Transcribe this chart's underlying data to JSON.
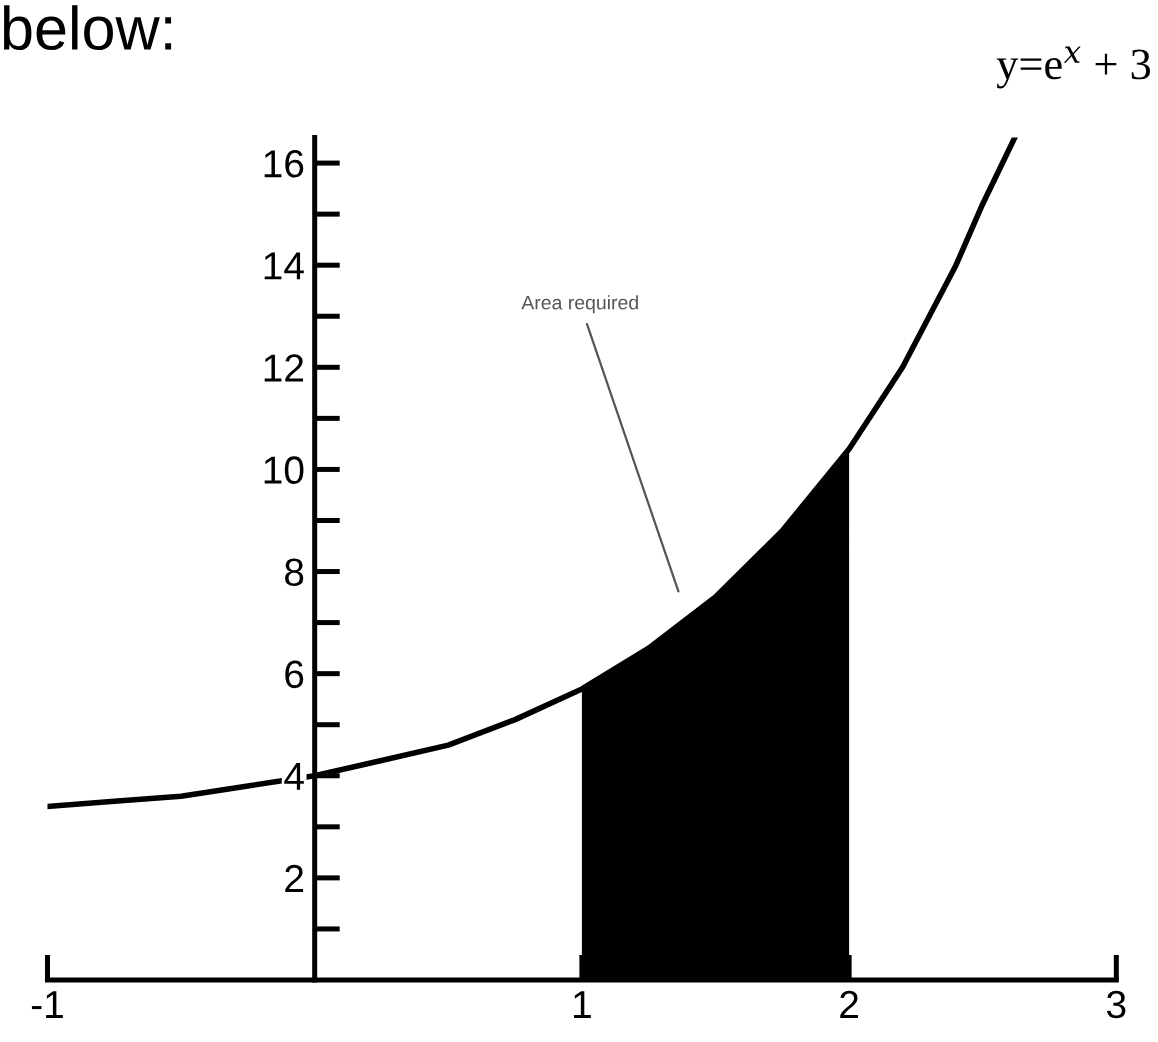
{
  "chart_data": {
    "type": "line",
    "series": [
      {
        "color": "#000000",
        "x": [
          -1,
          -0.75,
          -0.5,
          -0.25,
          0,
          0.25,
          0.5,
          0.75,
          1,
          1.25,
          1.5,
          1.75,
          2,
          2.1,
          2.2,
          2.3,
          2.4,
          2.5,
          2.62
        ],
        "values": [
          3.4,
          3.5,
          3.6,
          3.8,
          4.0,
          4.3,
          4.6,
          5.1,
          5.7,
          6.5,
          7.5,
          8.8,
          10.4,
          11.2,
          12.0,
          13.0,
          14.0,
          15.2,
          16.5
        ]
      },
      {
        "type": "area",
        "color": "#000000",
        "x": [
          1,
          1.25,
          1.5,
          1.75,
          2
        ],
        "values": [
          5.7,
          6.5,
          7.5,
          8.8,
          10.4
        ]
      }
    ],
    "annotations": [
      "below:",
      "y=e$^{x}$ + 3",
      "Area required"
    ],
    "xlim": [
      -1,
      3
    ],
    "xticks": [
      -1,
      1,
      2,
      3
    ],
    "ylim": [
      0,
      16.5
    ],
    "yticks": [
      {
        "value": 1,
        "label": null
      },
      2,
      {
        "value": 3,
        "label": null
      },
      4,
      {
        "value": 5,
        "label": null
      },
      6,
      {
        "value": 7,
        "label": null
      },
      8,
      {
        "value": 9,
        "label": null
      },
      10,
      {
        "value": 11,
        "label": null
      },
      12,
      {
        "value": 13,
        "label": null
      },
      14,
      {
        "value": 15,
        "label": null
      },
      16
    ],
    "grid": false,
    "legend": false,
    "line_style": "solid",
    "marker": "none"
  }
}
